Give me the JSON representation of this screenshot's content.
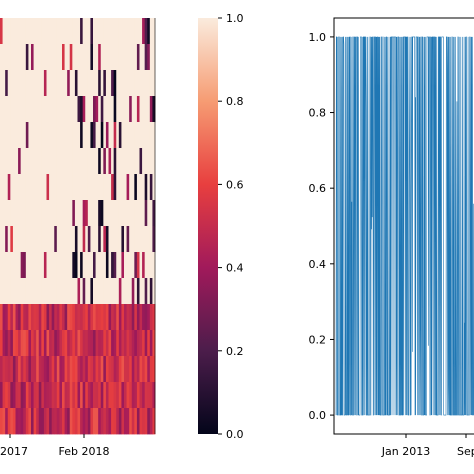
{
  "chart_data": [
    {
      "type": "heatmap",
      "x_tick_labels": [
        "r 2017",
        "Feb 2018"
      ],
      "colorbar": {
        "range": [
          0.0,
          1.0
        ],
        "tick_labels": [
          "0.0",
          "0.2",
          "0.4",
          "0.6",
          "0.8",
          "1.0"
        ],
        "colormap": "rocket",
        "colors": [
          "#03051a",
          "#4c1d4b",
          "#a11a5b",
          "#e83f3f",
          "#f69c73",
          "#faebdd"
        ]
      },
      "rows": 16,
      "upper_block": {
        "value": 1.0,
        "rows": 11
      },
      "lower_block": {
        "value_range": [
          0.35,
          0.65
        ],
        "rows": 5
      },
      "gap_column_fraction": 0.12
    },
    {
      "type": "line",
      "series_color": "#1f77b4",
      "x_tick_labels": [
        "Jan 2013",
        "Sep"
      ],
      "y_tick_labels": [
        "0.0",
        "0.2",
        "0.4",
        "0.6",
        "0.8",
        "1.0"
      ],
      "ylim": [
        -0.05,
        1.05
      ],
      "values_description_levels": [
        0.0,
        1.0
      ]
    }
  ]
}
